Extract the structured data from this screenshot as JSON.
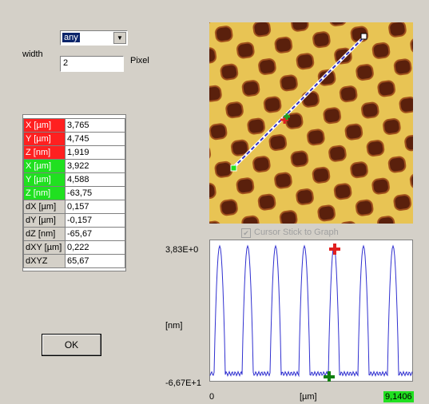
{
  "dropdown": {
    "selected": "any"
  },
  "width": {
    "label": "width",
    "value": "2",
    "unit": "Pixel"
  },
  "table": {
    "rows": [
      [
        "X [µm]",
        "3,765"
      ],
      [
        "Y [µm]",
        "4,745"
      ],
      [
        "Z [nm]",
        "1,919"
      ],
      [
        "X [µm]",
        "3,922"
      ],
      [
        "Y [µm]",
        "4,588"
      ],
      [
        "Z [nm]",
        "-63,75"
      ],
      [
        "dX [µm]",
        "0,157"
      ],
      [
        "dY [µm]",
        "-0,157"
      ],
      [
        "dZ [nm]",
        "-65,67"
      ],
      [
        "dXY [µm]",
        "0,222"
      ],
      [
        "dXYZ",
        "65,67"
      ]
    ]
  },
  "ok": "OK",
  "checkbox": "Cursor Stick to Graph",
  "graph": {
    "y_max": "3,83E+0",
    "y_unit": "[nm]",
    "y_min": "-6,67E+1",
    "x_min": "0",
    "x_unit": "[µm]",
    "x_max": "9,1406"
  }
}
